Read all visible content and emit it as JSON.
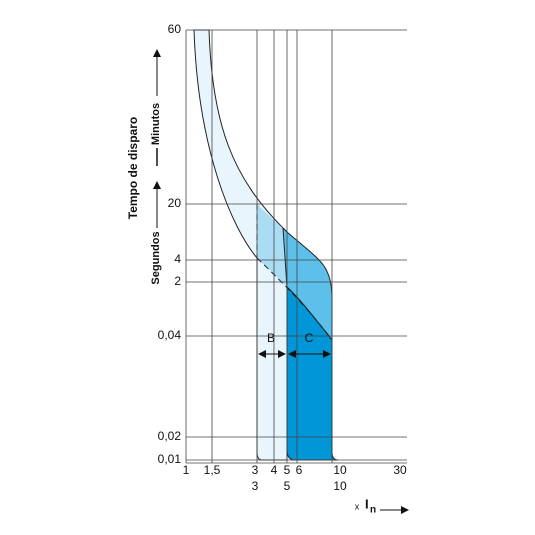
{
  "y_axis": {
    "title": "Tempo de disparo",
    "lower_unit": "Segundos",
    "upper_unit": "Minutos",
    "ticks": [
      "60",
      "20",
      "4",
      "2",
      "0,04",
      "0,02",
      "0,01"
    ]
  },
  "x_axis": {
    "prefix": "x",
    "label": "I",
    "subscript": "n",
    "ticks": [
      "1",
      "1,5",
      "3",
      "4",
      "5",
      "6",
      "10",
      "30"
    ],
    "ticks_second_row": [
      "3",
      "5",
      "10"
    ]
  },
  "curves": [
    "B",
    "C"
  ]
}
